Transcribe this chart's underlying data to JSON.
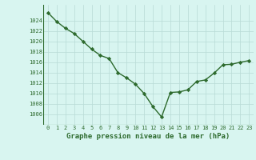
{
  "x": [
    0,
    1,
    2,
    3,
    4,
    5,
    6,
    7,
    8,
    9,
    10,
    11,
    12,
    13,
    14,
    15,
    16,
    17,
    18,
    19,
    20,
    21,
    22,
    23
  ],
  "y": [
    1025.5,
    1023.8,
    1022.5,
    1021.5,
    1020.0,
    1018.5,
    1017.3,
    1016.7,
    1014.0,
    1013.0,
    1011.8,
    1010.0,
    1007.5,
    1005.5,
    1010.2,
    1010.3,
    1010.7,
    1012.3,
    1012.6,
    1013.9,
    1015.5,
    1015.6,
    1016.0,
    1016.3
  ],
  "line_color": "#2d6a2d",
  "marker": "D",
  "marker_size": 2.2,
  "background_color": "#d8f5f0",
  "grid_color": "#b8dbd6",
  "xlabel": "Graphe pression niveau de la mer (hPa)",
  "xlabel_fontsize": 6.5,
  "ylim": [
    1004,
    1027
  ],
  "xlim": [
    -0.5,
    23.5
  ],
  "yticks": [
    1006,
    1008,
    1010,
    1012,
    1014,
    1016,
    1018,
    1020,
    1022,
    1024
  ],
  "xticks": [
    0,
    1,
    2,
    3,
    4,
    5,
    6,
    7,
    8,
    9,
    10,
    11,
    12,
    13,
    14,
    15,
    16,
    17,
    18,
    19,
    20,
    21,
    22,
    23
  ],
  "tick_color": "#2d6a2d",
  "tick_fontsize": 5.0,
  "line_width": 1.0
}
